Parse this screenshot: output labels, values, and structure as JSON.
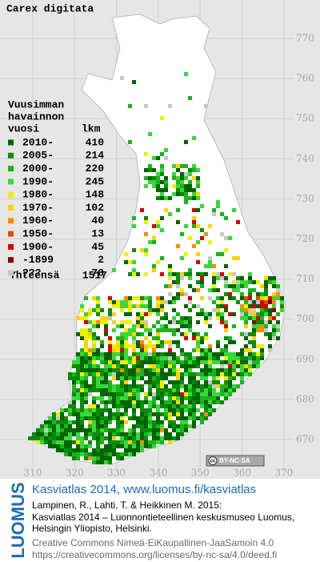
{
  "title": "Carex digitata",
  "legend": {
    "heading": [
      "Vuusimman",
      "havainnon",
      "vuosi"
    ],
    "count_heading": "lkm",
    "entries": [
      {
        "label": "2010-",
        "count": 410,
        "color": "#006400"
      },
      {
        "label": "2005-",
        "count": 214,
        "color": "#0a8c0a"
      },
      {
        "label": "2000-",
        "count": 220,
        "color": "#1cb41c"
      },
      {
        "label": "1990-",
        "count": 245,
        "color": "#38d838"
      },
      {
        "label": "1980-",
        "count": 148,
        "color": "#f0f000"
      },
      {
        "label": "1970-",
        "count": 102,
        "color": "#ffd200"
      },
      {
        "label": "1960-",
        "count": 40,
        "color": "#ff8c00"
      },
      {
        "label": "1950-",
        "count": 13,
        "color": "#e84a00"
      },
      {
        "label": "1900-",
        "count": 45,
        "color": "#d40000"
      },
      {
        "label": "-1899",
        "count": 2,
        "color": "#800000"
      },
      {
        "label": "???",
        "count": 78,
        "color": "#c8c8c8"
      }
    ],
    "total_label": "Yhteensä",
    "total": 1517
  },
  "x_axis": {
    "ticks": [
      310,
      320,
      330,
      340,
      350,
      360,
      370
    ]
  },
  "y_axis": {
    "ticks": [
      670,
      680,
      690,
      700,
      710,
      720,
      730,
      740,
      750,
      760,
      770
    ]
  },
  "badge": {
    "cc": "cc",
    "license": "BY-NC-SA"
  },
  "footer": {
    "logo": "LUOMUS",
    "link": "Kasviatlas 2014, www.luomus.fi/kasviatlas",
    "citation": [
      "Lampinen, R., Lahti, T. & Heikkinen M. 2015:",
      "Kasviatlas 2014 – Luonnontieteellinen keskusmuseo Luomus,",
      "Helsingin Yliopisto, Helsinki."
    ],
    "license": [
      "Creative Commons Nimeä-EiKaupallinen-JaaSamoin 4.0",
      "https://creativecommons.org/licenses/by-nc-sa/4.0/deed.fi"
    ]
  }
}
